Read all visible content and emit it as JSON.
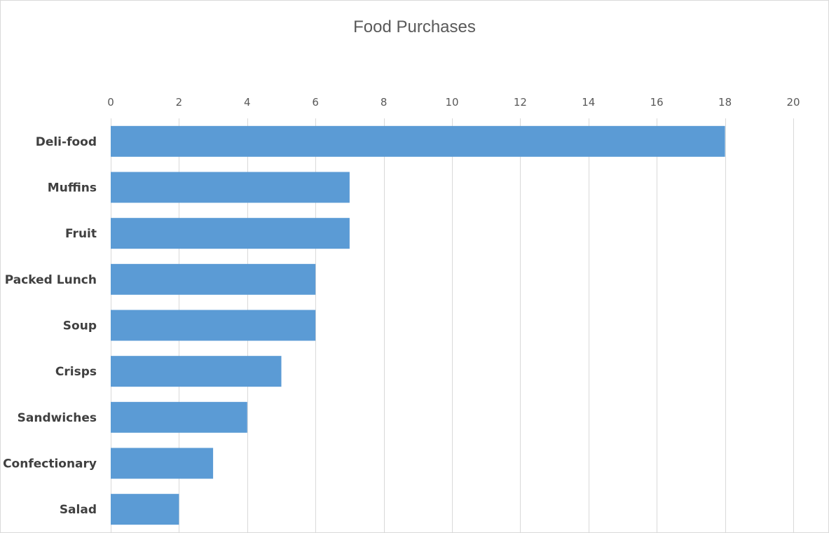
{
  "chart_data": {
    "type": "bar",
    "orientation": "horizontal",
    "title": "Food Purchases",
    "xlabel": "",
    "ylabel": "",
    "categories": [
      "Deli-food",
      "Muffins",
      "Fruit",
      "Packed Lunch",
      "Soup",
      "Crisps",
      "Sandwiches",
      "Confectionary",
      "Salad"
    ],
    "values": [
      18,
      7,
      7,
      6,
      6,
      5,
      4,
      3,
      2
    ],
    "xlim": [
      0,
      20
    ],
    "xticks": [
      0,
      2,
      4,
      6,
      8,
      10,
      12,
      14,
      16,
      18,
      20
    ],
    "value_axis_position": "top",
    "grid": true,
    "legend": "none",
    "bar_color": "#5b9bd5",
    "grid_color": "#d9d9d9"
  }
}
